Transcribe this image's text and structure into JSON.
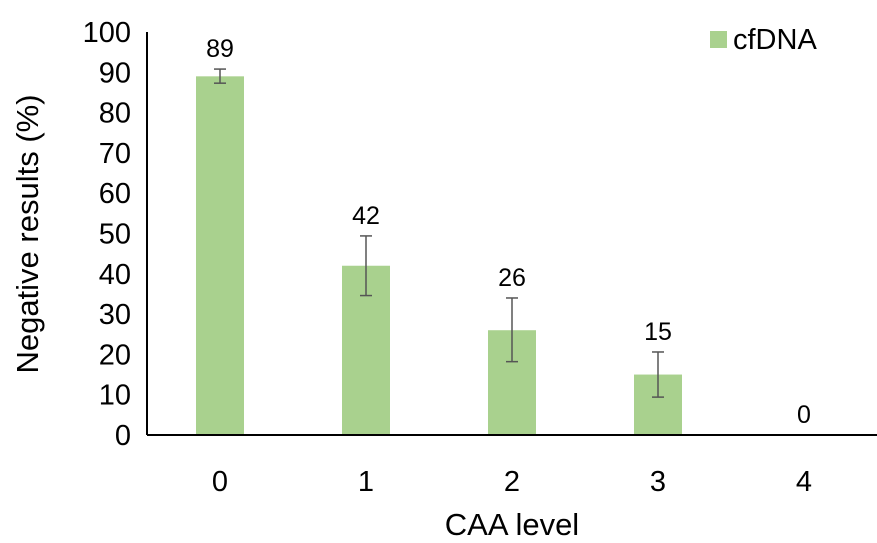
{
  "chart_data": {
    "type": "bar",
    "categories": [
      "0",
      "1",
      "2",
      "3",
      "4"
    ],
    "series": [
      {
        "name": "cfDNA",
        "values": [
          89,
          42,
          26,
          15,
          0
        ],
        "error_low": [
          87.3,
          34.6,
          18.2,
          9.4,
          0
        ],
        "error_high": [
          90.8,
          49.4,
          34.0,
          20.6,
          0
        ],
        "data_labels": [
          "89",
          "42",
          "26",
          "15",
          "0"
        ],
        "color": "#a9d18e"
      }
    ],
    "xlabel": "CAA level",
    "ylabel": "Negative results (%)",
    "ylim": [
      0,
      100
    ],
    "yticks": [
      "0",
      "10",
      "20",
      "30",
      "40",
      "50",
      "60",
      "70",
      "80",
      "90",
      "100"
    ],
    "grid": false,
    "legend": "top-right"
  }
}
